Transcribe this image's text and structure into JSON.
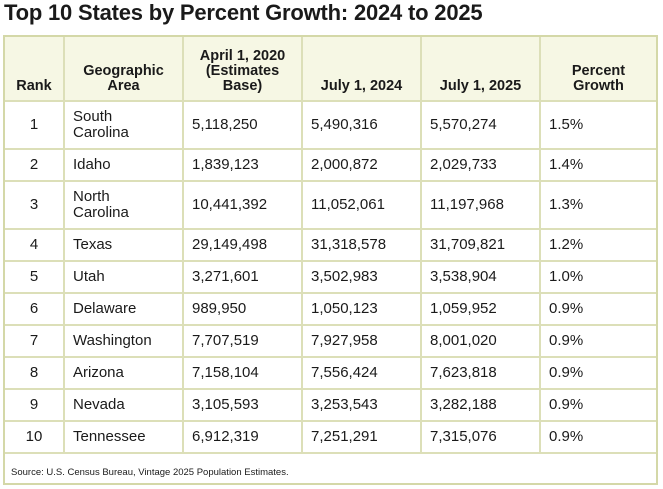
{
  "title": "Top 10 States by Percent Growth: 2024 to 2025",
  "columns": {
    "rank": "Rank",
    "area": "Geographic Area",
    "base": "April 1, 2020 (Estimates Base)",
    "y2024": "July 1, 2024",
    "y2025": "July 1, 2025",
    "pct": "Percent Growth"
  },
  "rows": [
    {
      "rank": "1",
      "area": "South Carolina",
      "base": "5,118,250",
      "y2024": "5,490,316",
      "y2025": "5,570,274",
      "pct": "1.5%"
    },
    {
      "rank": "2",
      "area": "Idaho",
      "base": "1,839,123",
      "y2024": "2,000,872",
      "y2025": "2,029,733",
      "pct": "1.4%"
    },
    {
      "rank": "3",
      "area": "North Carolina",
      "base": "10,441,392",
      "y2024": "11,052,061",
      "y2025": "11,197,968",
      "pct": "1.3%"
    },
    {
      "rank": "4",
      "area": "Texas",
      "base": "29,149,498",
      "y2024": "31,318,578",
      "y2025": "31,709,821",
      "pct": "1.2%"
    },
    {
      "rank": "5",
      "area": "Utah",
      "base": "3,271,601",
      "y2024": "3,502,983",
      "y2025": "3,538,904",
      "pct": "1.0%"
    },
    {
      "rank": "6",
      "area": "Delaware",
      "base": "989,950",
      "y2024": "1,050,123",
      "y2025": "1,059,952",
      "pct": "0.9%"
    },
    {
      "rank": "7",
      "area": "Washington",
      "base": "7,707,519",
      "y2024": "7,927,958",
      "y2025": "8,001,020",
      "pct": "0.9%"
    },
    {
      "rank": "8",
      "area": "Arizona",
      "base": "7,158,104",
      "y2024": "7,556,424",
      "y2025": "7,623,818",
      "pct": "0.9%"
    },
    {
      "rank": "9",
      "area": "Nevada",
      "base": "3,105,593",
      "y2024": "3,253,543",
      "y2025": "3,282,188",
      "pct": "0.9%"
    },
    {
      "rank": "10",
      "area": "Tennessee",
      "base": "6,912,319",
      "y2024": "7,251,291",
      "y2025": "7,315,076",
      "pct": "0.9%"
    }
  ],
  "source": "Source: U.S. Census Bureau, Vintage 2025 Population Estimates.",
  "colors": {
    "header_bg": "#f6f7e4",
    "border": "#d4d8a8"
  }
}
